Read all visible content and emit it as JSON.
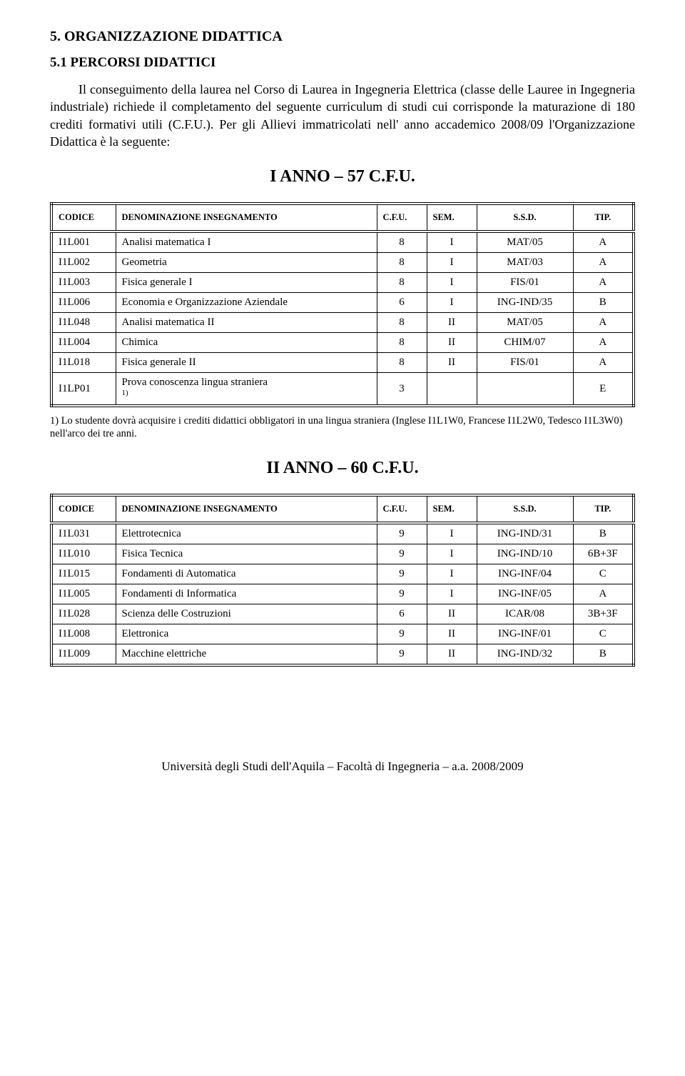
{
  "heading_section": "5. ORGANIZZAZIONE DIDATTICA",
  "heading_subsection": "5.1 PERCORSI DIDATTICI",
  "intro_para": "Il conseguimento della laurea nel Corso di Laurea in Ingegneria Elettrica (classe delle Lauree in Ingegneria industriale) richiede il completamento del seguente curriculum di studi cui corrisponde la maturazione di 180 crediti formativi utili (C.F.U.). Per gli Allievi immatricolati nell' anno accademico 2008/09 l'Organizzazione Didattica è la seguente:",
  "year1_title": "I ANNO – 57 C.F.U.",
  "year2_title": "II ANNO – 60 C.F.U.",
  "thead": {
    "code": "CODICE",
    "name": "DENOMINAZIONE INSEGNAMENTO",
    "cfu": "C.F.U.",
    "sem": "SEM.",
    "ssd": "S.S.D.",
    "tip": "TIP."
  },
  "year1_rows": [
    {
      "code": "I1L001",
      "name": "Analisi matematica I",
      "cfu": "8",
      "sem": "I",
      "ssd": "MAT/05",
      "tip": "A"
    },
    {
      "code": "I1L002",
      "name": "Geometria",
      "cfu": "8",
      "sem": "I",
      "ssd": "MAT/03",
      "tip": "A"
    },
    {
      "code": "I1L003",
      "name": "Fisica generale I",
      "cfu": "8",
      "sem": "I",
      "ssd": "FIS/01",
      "tip": "A"
    },
    {
      "code": "I1L006",
      "name": "Economia e Organizzazione Aziendale",
      "cfu": "6",
      "sem": "I",
      "ssd": "ING-IND/35",
      "tip": "B"
    },
    {
      "code": "I1L048",
      "name": "Analisi matematica II",
      "cfu": "8",
      "sem": "II",
      "ssd": "MAT/05",
      "tip": "A"
    },
    {
      "code": "I1L004",
      "name": "Chimica",
      "cfu": "8",
      "sem": "II",
      "ssd": "CHIM/07",
      "tip": "A"
    },
    {
      "code": "I1L018",
      "name": "Fisica generale II",
      "cfu": "8",
      "sem": "II",
      "ssd": "FIS/01",
      "tip": "A"
    },
    {
      "code": "I1LP01",
      "name": "Prova conoscenza lingua straniera ",
      "sup": "1)",
      "cfu": "3",
      "sem": "",
      "ssd": "",
      "tip": "E"
    }
  ],
  "year2_rows": [
    {
      "code": "I1L031",
      "name": "Elettrotecnica",
      "cfu": "9",
      "sem": "I",
      "ssd": "ING-IND/31",
      "tip": "B"
    },
    {
      "code": "I1L010",
      "name": "Fisica Tecnica",
      "cfu": "9",
      "sem": "I",
      "ssd": "ING-IND/10",
      "tip": "6B+3F"
    },
    {
      "code": "I1L015",
      "name": "Fondamenti di Automatica",
      "cfu": "9",
      "sem": "I",
      "ssd": "ING-INF/04",
      "tip": "C"
    },
    {
      "code": "I1L005",
      "name": "Fondamenti di Informatica",
      "cfu": "9",
      "sem": "I",
      "ssd": "ING-INF/05",
      "tip": "A"
    },
    {
      "code": "I1L028",
      "name": "Scienza delle Costruzioni",
      "cfu": "6",
      "sem": "II",
      "ssd": "ICAR/08",
      "tip": "3B+3F"
    },
    {
      "code": "I1L008",
      "name": "Elettronica",
      "cfu": "9",
      "sem": "II",
      "ssd": "ING-INF/01",
      "tip": "C"
    },
    {
      "code": "I1L009",
      "name": "Macchine elettriche",
      "cfu": "9",
      "sem": "II",
      "ssd": "ING-IND/32",
      "tip": "B"
    }
  ],
  "footnote_text": "1) Lo studente dovrà acquisire i crediti didattici obbligatori in una lingua straniera (Inglese I1L1W0, Francese I1L2W0, Tedesco I1L3W0) nell'arco dei tre anni.",
  "footer_text": "Università degli Studi dell'Aquila – Facoltà di Ingegneria – a.a. 2008/2009"
}
